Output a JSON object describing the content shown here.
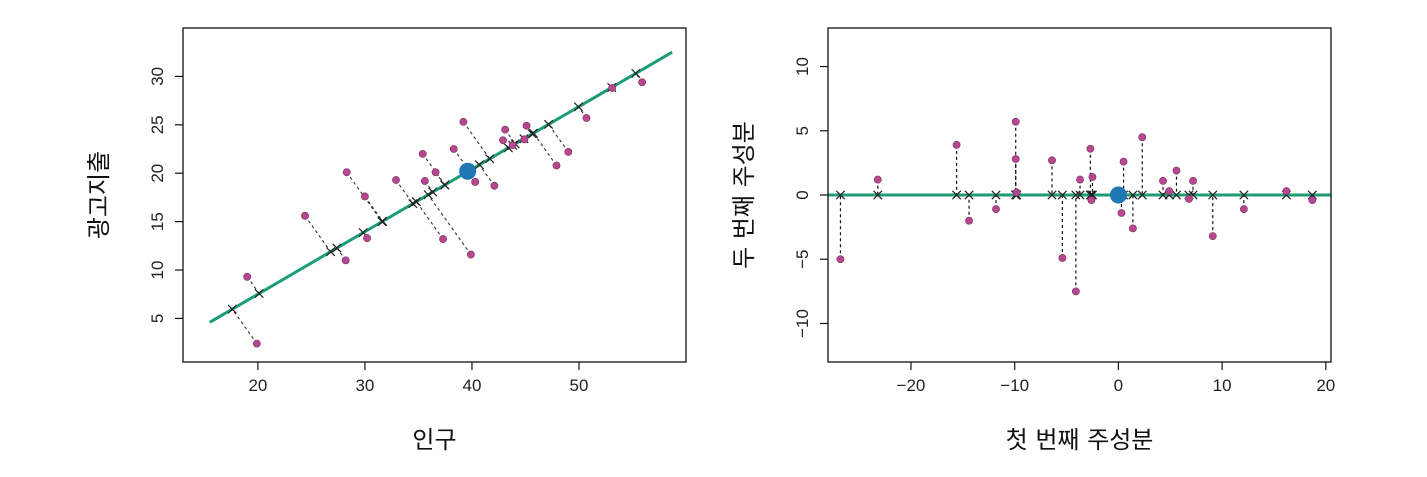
{
  "colors": {
    "line": "#1b9e77",
    "point": "#b5488f",
    "center": "#1f77b4",
    "frame": "#111111"
  },
  "chart_data": [
    {
      "type": "scatter",
      "xlabel": "인구",
      "ylabel": "광고지출",
      "xlim": [
        13,
        60
      ],
      "ylim": [
        0.5,
        35
      ],
      "x_ticks": [
        20,
        30,
        40,
        50
      ],
      "y_ticks": [
        5,
        10,
        15,
        20,
        25,
        30
      ],
      "grid": false,
      "center": {
        "x": 39.6,
        "y": 20.2
      },
      "line": {
        "x_start": 15.5,
        "y_start": 4.6,
        "x_end": 58.7,
        "y_end": 32.5
      },
      "points": {
        "x": [
          19.0,
          19.9,
          24.4,
          28.3,
          28.2,
          30.0,
          30.2,
          32.9,
          35.4,
          35.6,
          36.6,
          37.3,
          39.2,
          38.3,
          39.9,
          40.3,
          42.1,
          42.9,
          43.1,
          43.8,
          45.1,
          44.9,
          47.9,
          49.0,
          50.7,
          53.1,
          55.9
        ],
        "y": [
          9.3,
          2.4,
          15.6,
          20.1,
          11.0,
          17.6,
          13.3,
          19.3,
          22.0,
          19.2,
          20.1,
          13.2,
          25.3,
          22.5,
          11.6,
          19.1,
          18.7,
          23.4,
          24.5,
          22.9,
          24.9,
          23.5,
          20.8,
          22.2,
          25.7,
          28.8,
          29.4
        ]
      }
    },
    {
      "type": "scatter",
      "xlabel": "첫 번째 주성분",
      "ylabel": "두 번째 주성분",
      "xlim": [
        -28,
        20.5
      ],
      "ylim": [
        -13,
        13
      ],
      "x_ticks": [
        -20,
        -10,
        0,
        10,
        20
      ],
      "y_ticks": [
        -10,
        -5,
        0,
        5,
        10
      ],
      "grid": false,
      "center": {
        "x": 0,
        "y": 0
      },
      "line": {
        "y": 0
      },
      "points": {
        "x": [
          -26.8,
          -23.2,
          -15.6,
          -14.4,
          -11.8,
          -9.9,
          -9.9,
          -9.8,
          -6.4,
          -5.4,
          -4.1,
          -3.7,
          -2.7,
          -2.5,
          -2.6,
          0.3,
          0.5,
          1.4,
          2.3,
          4.3,
          4.9,
          5.6,
          6.8,
          7.2,
          9.1,
          12.1,
          16.2,
          18.7
        ],
        "y": [
          -5.0,
          1.2,
          3.9,
          -2.0,
          -1.1,
          5.7,
          2.8,
          0.2,
          2.7,
          -4.9,
          -7.5,
          1.2,
          3.6,
          1.4,
          -0.4,
          -1.4,
          2.6,
          -2.6,
          4.5,
          1.1,
          0.3,
          1.9,
          -0.3,
          1.1,
          -3.2,
          -1.1,
          0.3,
          -0.4
        ]
      }
    }
  ]
}
